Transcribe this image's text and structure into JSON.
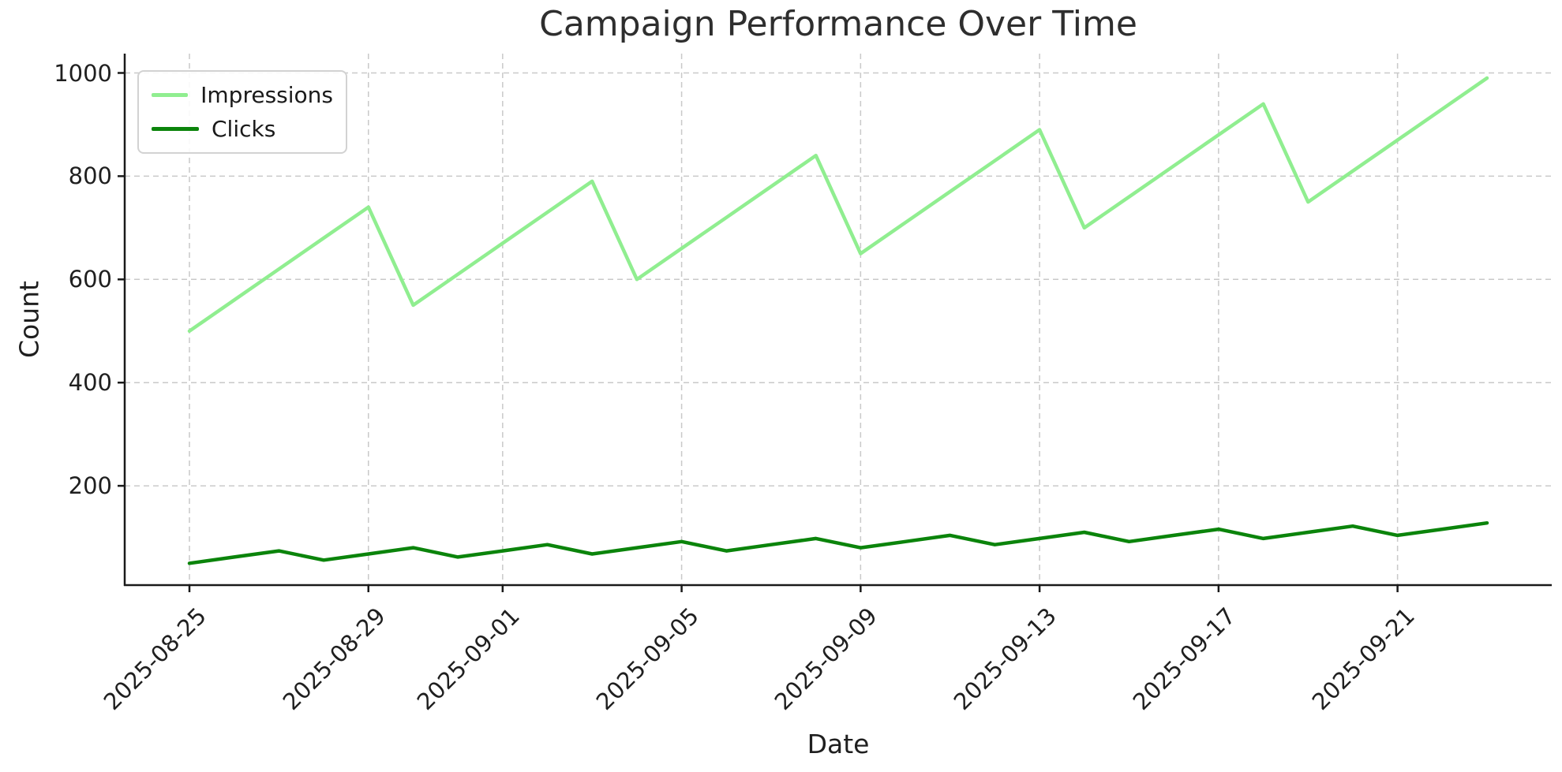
{
  "figure": {
    "background": "#ffffff"
  },
  "chart_data": {
    "type": "line",
    "title": "Campaign Performance Over Time",
    "xlabel": "Date",
    "ylabel": "Count",
    "x": [
      "2025-08-25",
      "2025-08-26",
      "2025-08-27",
      "2025-08-28",
      "2025-08-29",
      "2025-08-30",
      "2025-08-31",
      "2025-09-01",
      "2025-09-02",
      "2025-09-03",
      "2025-09-04",
      "2025-09-05",
      "2025-09-06",
      "2025-09-07",
      "2025-09-08",
      "2025-09-09",
      "2025-09-10",
      "2025-09-11",
      "2025-09-12",
      "2025-09-13",
      "2025-09-14",
      "2025-09-15",
      "2025-09-16",
      "2025-09-17",
      "2025-09-18",
      "2025-09-19",
      "2025-09-20",
      "2025-09-21",
      "2025-09-22",
      "2025-09-23"
    ],
    "series": [
      {
        "name": "Impressions",
        "color": "#90ee90",
        "values": [
          500,
          560,
          620,
          680,
          740,
          550,
          610,
          670,
          730,
          790,
          600,
          660,
          720,
          780,
          840,
          650,
          710,
          770,
          830,
          890,
          700,
          760,
          820,
          880,
          940,
          750,
          810,
          870,
          930,
          990
        ]
      },
      {
        "name": "Clicks",
        "color": "#0b840b",
        "values": [
          50,
          62,
          74,
          56,
          68,
          80,
          62,
          74,
          86,
          68,
          80,
          92,
          74,
          86,
          98,
          80,
          92,
          104,
          86,
          98,
          110,
          92,
          104,
          116,
          98,
          110,
          122,
          104,
          116,
          128
        ]
      }
    ],
    "xtick_labels": [
      "2025-08-25",
      "2025-08-29",
      "2025-09-01",
      "2025-09-05",
      "2025-09-09",
      "2025-09-13",
      "2025-09-17",
      "2025-09-21"
    ],
    "ytick_labels": [
      "200",
      "400",
      "600",
      "800",
      "1000"
    ],
    "ylim": [
      3,
      1037
    ],
    "grid": true,
    "grid_color": "#c9c9c9",
    "axis_color": "#1a1a1a",
    "legend_position": "upper left"
  }
}
